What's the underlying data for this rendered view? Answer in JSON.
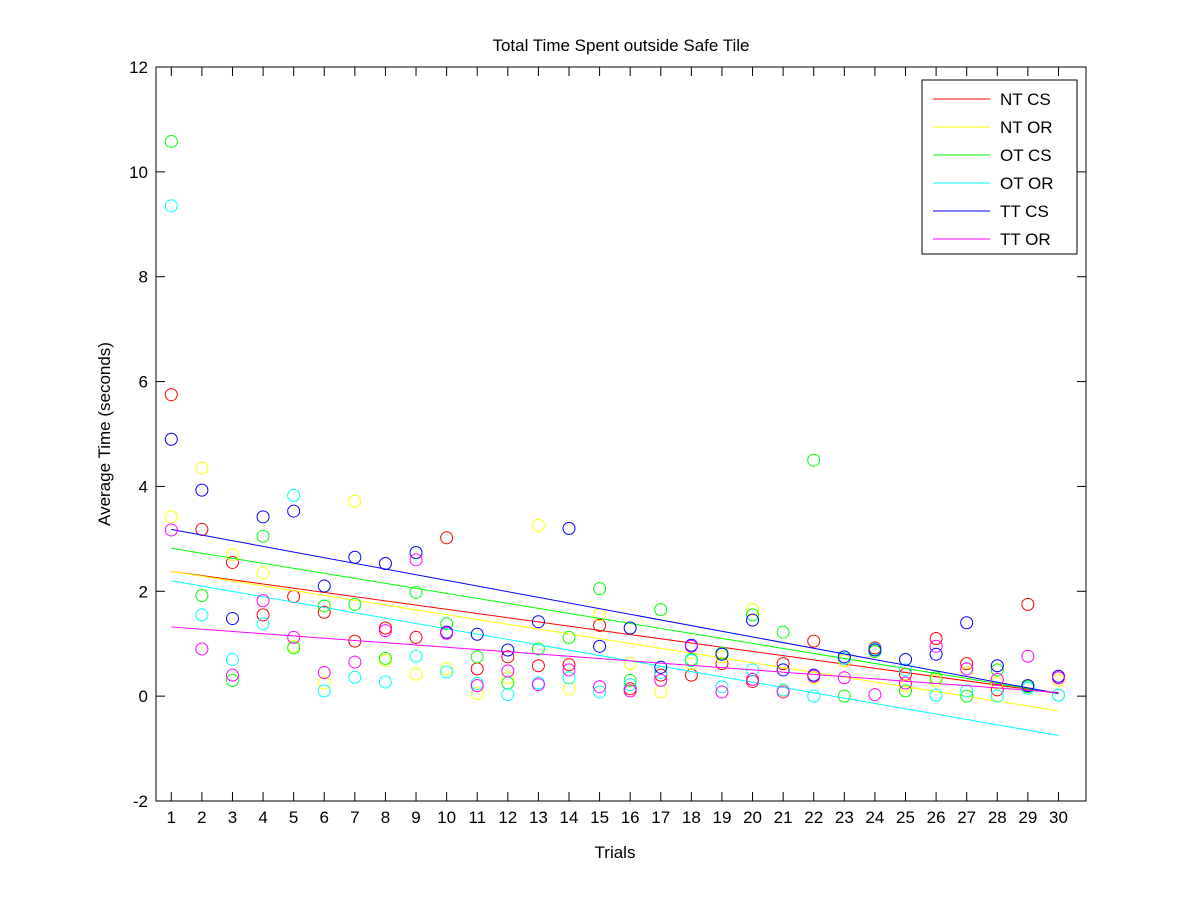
{
  "chart_data": {
    "type": "scatter",
    "title": "Total Time Spent outside Safe Tile",
    "xlabel": "Trials",
    "ylabel": "Average Time (seconds)",
    "xlim": [
      0.5,
      30.9
    ],
    "ylim": [
      -2,
      12
    ],
    "xticks": [
      1,
      2,
      3,
      4,
      5,
      6,
      7,
      8,
      9,
      10,
      11,
      12,
      13,
      14,
      15,
      16,
      17,
      18,
      19,
      20,
      21,
      22,
      23,
      24,
      25,
      26,
      27,
      28,
      29,
      30
    ],
    "yticks": [
      -2,
      0,
      2,
      4,
      6,
      8,
      10,
      12
    ],
    "grid": false,
    "legend_position": "top-right",
    "marker": "circle",
    "trendlines": true,
    "x": [
      1,
      2,
      3,
      4,
      5,
      6,
      7,
      8,
      9,
      10,
      11,
      12,
      13,
      14,
      15,
      16,
      17,
      18,
      19,
      20,
      21,
      22,
      23,
      24,
      25,
      26,
      27,
      28,
      29,
      30
    ],
    "series": [
      {
        "name": "NT CS",
        "color": "#ff0000",
        "values": [
          5.75,
          3.18,
          2.55,
          1.55,
          1.9,
          1.6,
          1.05,
          1.3,
          1.12,
          3.02,
          0.52,
          0.75,
          0.58,
          0.6,
          1.35,
          0.14,
          0.4,
          0.4,
          0.62,
          0.28,
          0.62,
          1.05,
          0.68,
          0.92,
          0.42,
          1.1,
          0.62,
          0.12,
          1.75,
          0.35
        ],
        "trend": [
          2.38,
          0.05
        ]
      },
      {
        "name": "NT OR",
        "color": "#ffff00",
        "values": [
          3.42,
          4.35,
          2.7,
          2.35,
          0.95,
          0.25,
          3.72,
          0.68,
          0.42,
          0.52,
          0.05,
          0.35,
          3.26,
          0.14,
          1.55,
          0.62,
          0.08,
          0.62,
          0.75,
          1.65,
          0.1,
          0.35,
          0.68,
          0.88,
          0.2,
          0.3,
          0.45,
          0.25,
          0.2,
          0.3
        ],
        "trend": [
          2.38,
          -0.28
        ]
      },
      {
        "name": "OT CS",
        "color": "#00ff00",
        "values": [
          10.58,
          1.92,
          0.3,
          3.05,
          0.92,
          1.72,
          1.75,
          0.72,
          1.98,
          1.38,
          0.75,
          0.25,
          0.9,
          1.12,
          2.05,
          0.3,
          1.65,
          0.7,
          0.82,
          1.55,
          1.22,
          4.5,
          0.0,
          0.85,
          0.1,
          0.35,
          0.0,
          0.5,
          0.18,
          0.02
        ],
        "trend": [
          2.82,
          0.05
        ]
      },
      {
        "name": "OT OR",
        "color": "#00ffff",
        "values": [
          9.35,
          1.55,
          0.7,
          1.38,
          3.83,
          0.1,
          0.36,
          0.27,
          0.76,
          0.46,
          0.24,
          0.03,
          0.25,
          0.35,
          0.08,
          0.22,
          0.45,
          0.68,
          0.18,
          0.5,
          0.12,
          0.0,
          0.72,
          0.9,
          0.5,
          0.02,
          0.1,
          0.0,
          0.15,
          0.02
        ],
        "trend": [
          2.2,
          -0.75
        ]
      },
      {
        "name": "TT CS",
        "color": "#0000ff",
        "values": [
          4.9,
          3.93,
          1.48,
          3.42,
          3.53,
          2.1,
          2.65,
          2.53,
          2.74,
          1.22,
          1.18,
          0.88,
          1.42,
          3.2,
          0.95,
          1.3,
          0.55,
          0.97,
          0.8,
          1.45,
          0.5,
          0.4,
          0.75,
          0.88,
          0.7,
          0.8,
          1.4,
          0.58,
          0.2,
          0.38
        ],
        "trend": [
          3.18,
          0.05
        ]
      },
      {
        "name": "TT OR",
        "color": "#ff00ff",
        "values": [
          3.17,
          0.9,
          0.4,
          1.82,
          1.12,
          0.45,
          0.65,
          1.25,
          2.6,
          1.2,
          0.2,
          0.48,
          0.22,
          0.5,
          0.18,
          0.1,
          0.3,
          0.95,
          0.08,
          0.32,
          0.08,
          0.38,
          0.35,
          0.03,
          0.25,
          0.95,
          0.52,
          0.32,
          0.76,
          0.35
        ],
        "trend": [
          1.32,
          0.07
        ]
      }
    ]
  }
}
